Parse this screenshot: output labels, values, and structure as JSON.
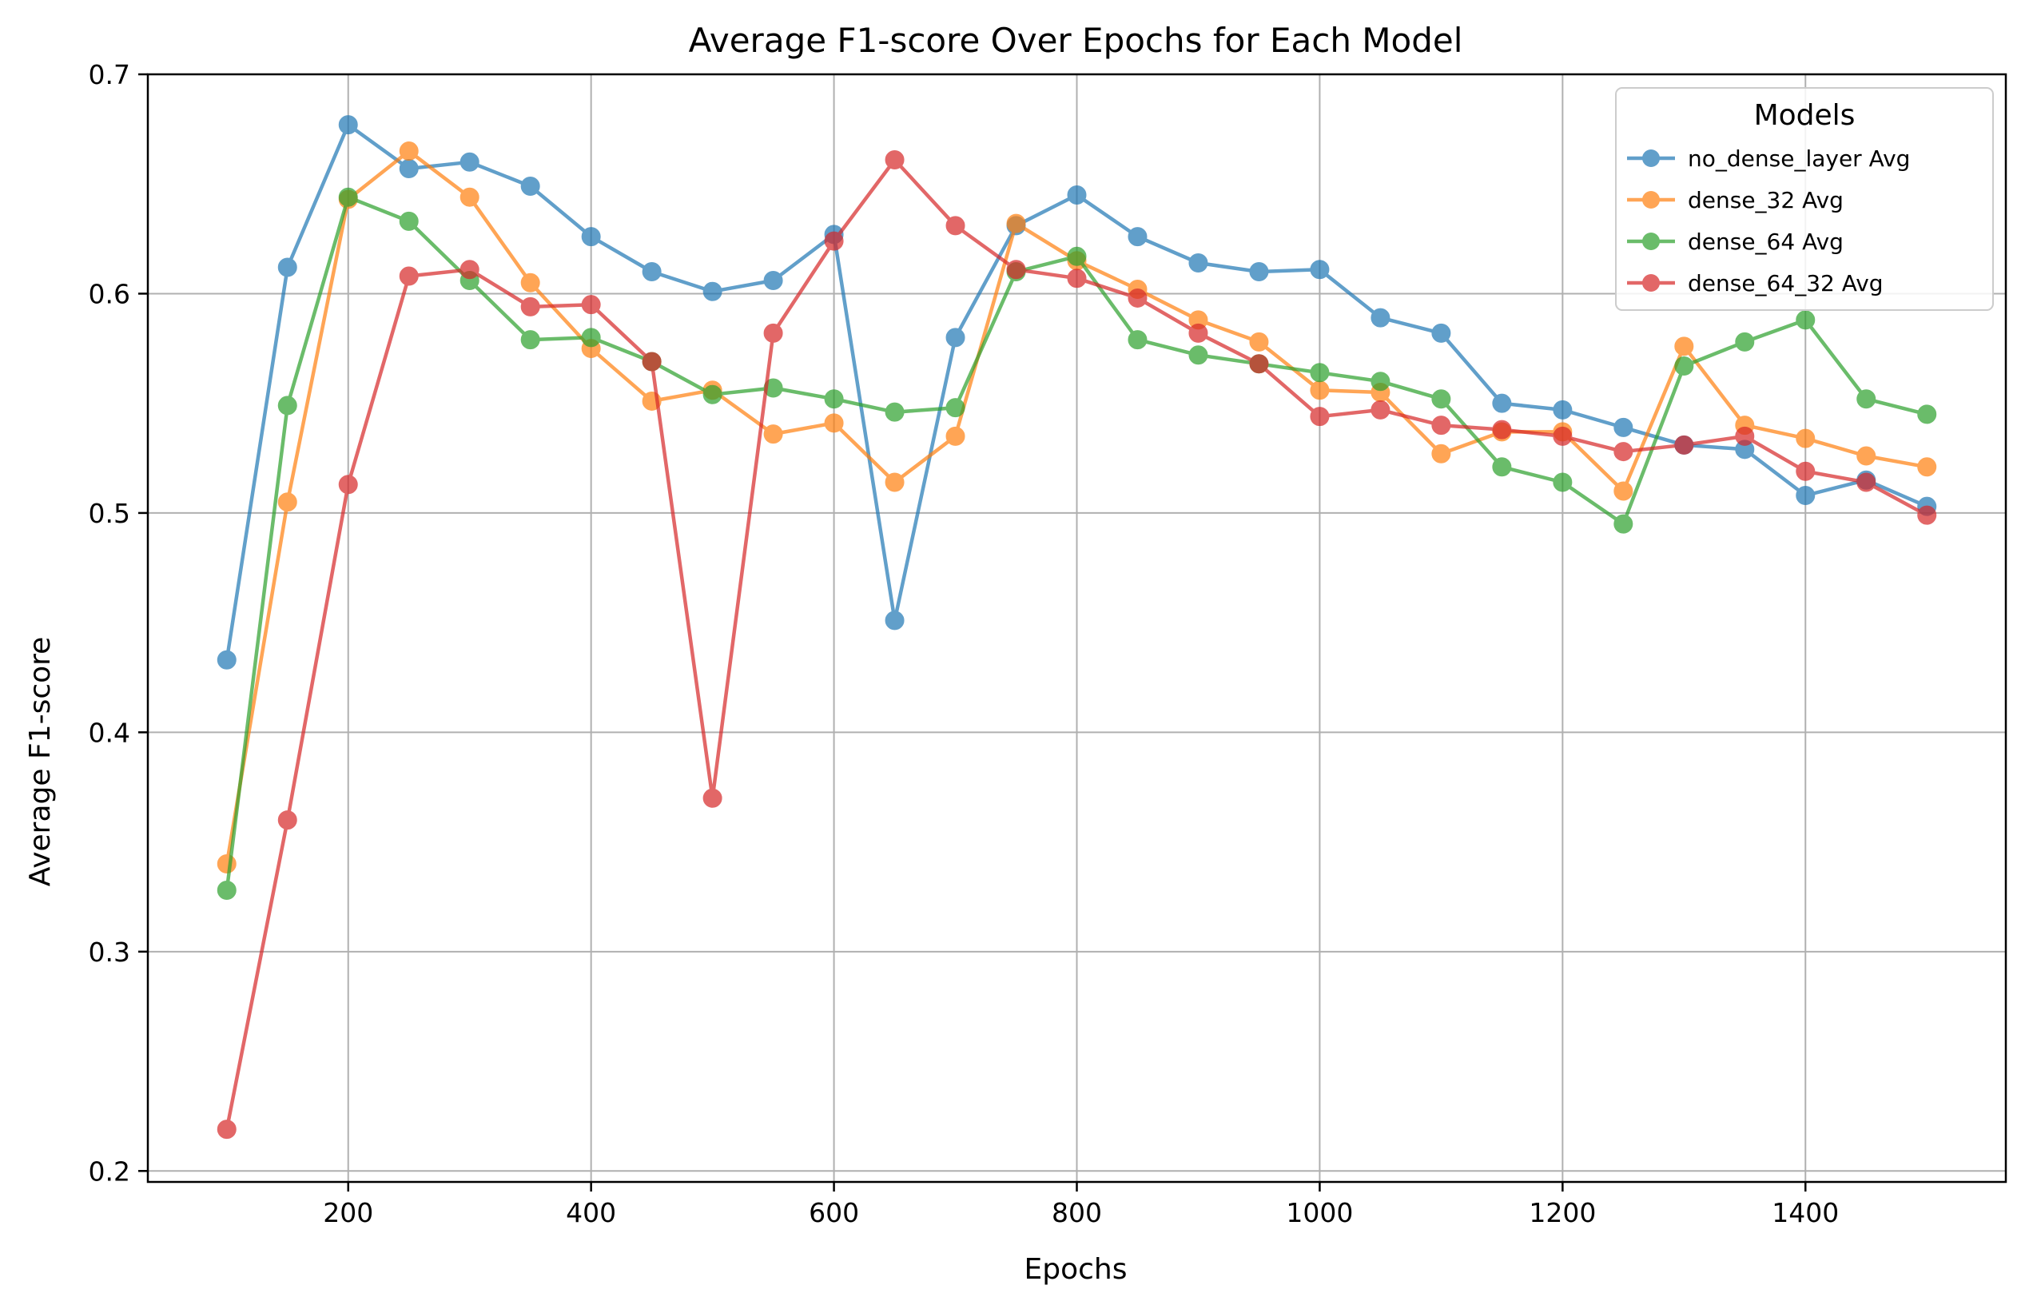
{
  "chart_data": {
    "type": "line",
    "title": "Average F1-score Over Epochs for Each Model",
    "xlabel": "Epochs",
    "ylabel": "Average F1-score",
    "xlim": [
      35,
      1565
    ],
    "ylim": [
      0.195,
      0.7
    ],
    "xticks": [
      200,
      400,
      600,
      800,
      1000,
      1200,
      1400
    ],
    "yticks": [
      0.2,
      0.3,
      0.4,
      0.5,
      0.6,
      0.7
    ],
    "xtick_labels": [
      "200",
      "400",
      "600",
      "800",
      "1000",
      "1200",
      "1400"
    ],
    "ytick_labels": [
      "0.2",
      "0.3",
      "0.4",
      "0.5",
      "0.6",
      "0.7"
    ],
    "grid": true,
    "legend": {
      "title": "Models",
      "placement": "top-right"
    },
    "x": [
      100,
      150,
      200,
      250,
      300,
      350,
      400,
      450,
      500,
      550,
      600,
      650,
      700,
      750,
      800,
      850,
      900,
      950,
      1000,
      1050,
      1100,
      1150,
      1200,
      1250,
      1300,
      1350,
      1400,
      1450,
      1500
    ],
    "series": [
      {
        "name": "no_dense_layer Avg",
        "color": "#1f77b4",
        "values": [
          0.433,
          0.612,
          0.677,
          0.657,
          0.66,
          0.649,
          0.626,
          0.61,
          0.601,
          0.606,
          0.627,
          0.451,
          0.58,
          0.631,
          0.645,
          0.626,
          0.614,
          0.61,
          0.611,
          0.589,
          0.582,
          0.55,
          0.547,
          0.539,
          0.531,
          0.529,
          0.508,
          0.515,
          0.503
        ]
      },
      {
        "name": "dense_32 Avg",
        "color": "#ff7f0e",
        "values": [
          0.34,
          0.505,
          0.643,
          0.665,
          0.644,
          0.605,
          0.575,
          0.551,
          0.556,
          0.536,
          0.541,
          0.514,
          0.535,
          0.632,
          0.615,
          0.602,
          0.588,
          0.578,
          0.556,
          0.555,
          0.527,
          0.537,
          0.537,
          0.51,
          0.576,
          0.54,
          0.534,
          0.526,
          0.521
        ]
      },
      {
        "name": "dense_64 Avg",
        "color": "#2ca02c",
        "values": [
          0.328,
          0.549,
          0.644,
          0.633,
          0.606,
          0.579,
          0.58,
          0.569,
          0.554,
          0.557,
          0.552,
          0.546,
          0.548,
          0.61,
          0.617,
          0.579,
          0.572,
          0.568,
          0.564,
          0.56,
          0.552,
          0.521,
          0.514,
          0.495,
          0.567,
          0.578,
          0.588,
          0.552,
          0.545
        ]
      },
      {
        "name": "dense_64_32 Avg",
        "color": "#d62728",
        "values": [
          0.219,
          0.36,
          0.513,
          0.608,
          0.611,
          0.594,
          0.595,
          0.569,
          0.37,
          0.582,
          0.624,
          0.661,
          0.631,
          0.611,
          0.607,
          0.598,
          0.582,
          0.568,
          0.544,
          0.547,
          0.54,
          0.538,
          0.535,
          0.528,
          0.531,
          0.535,
          0.519,
          0.514,
          0.499
        ]
      }
    ]
  }
}
